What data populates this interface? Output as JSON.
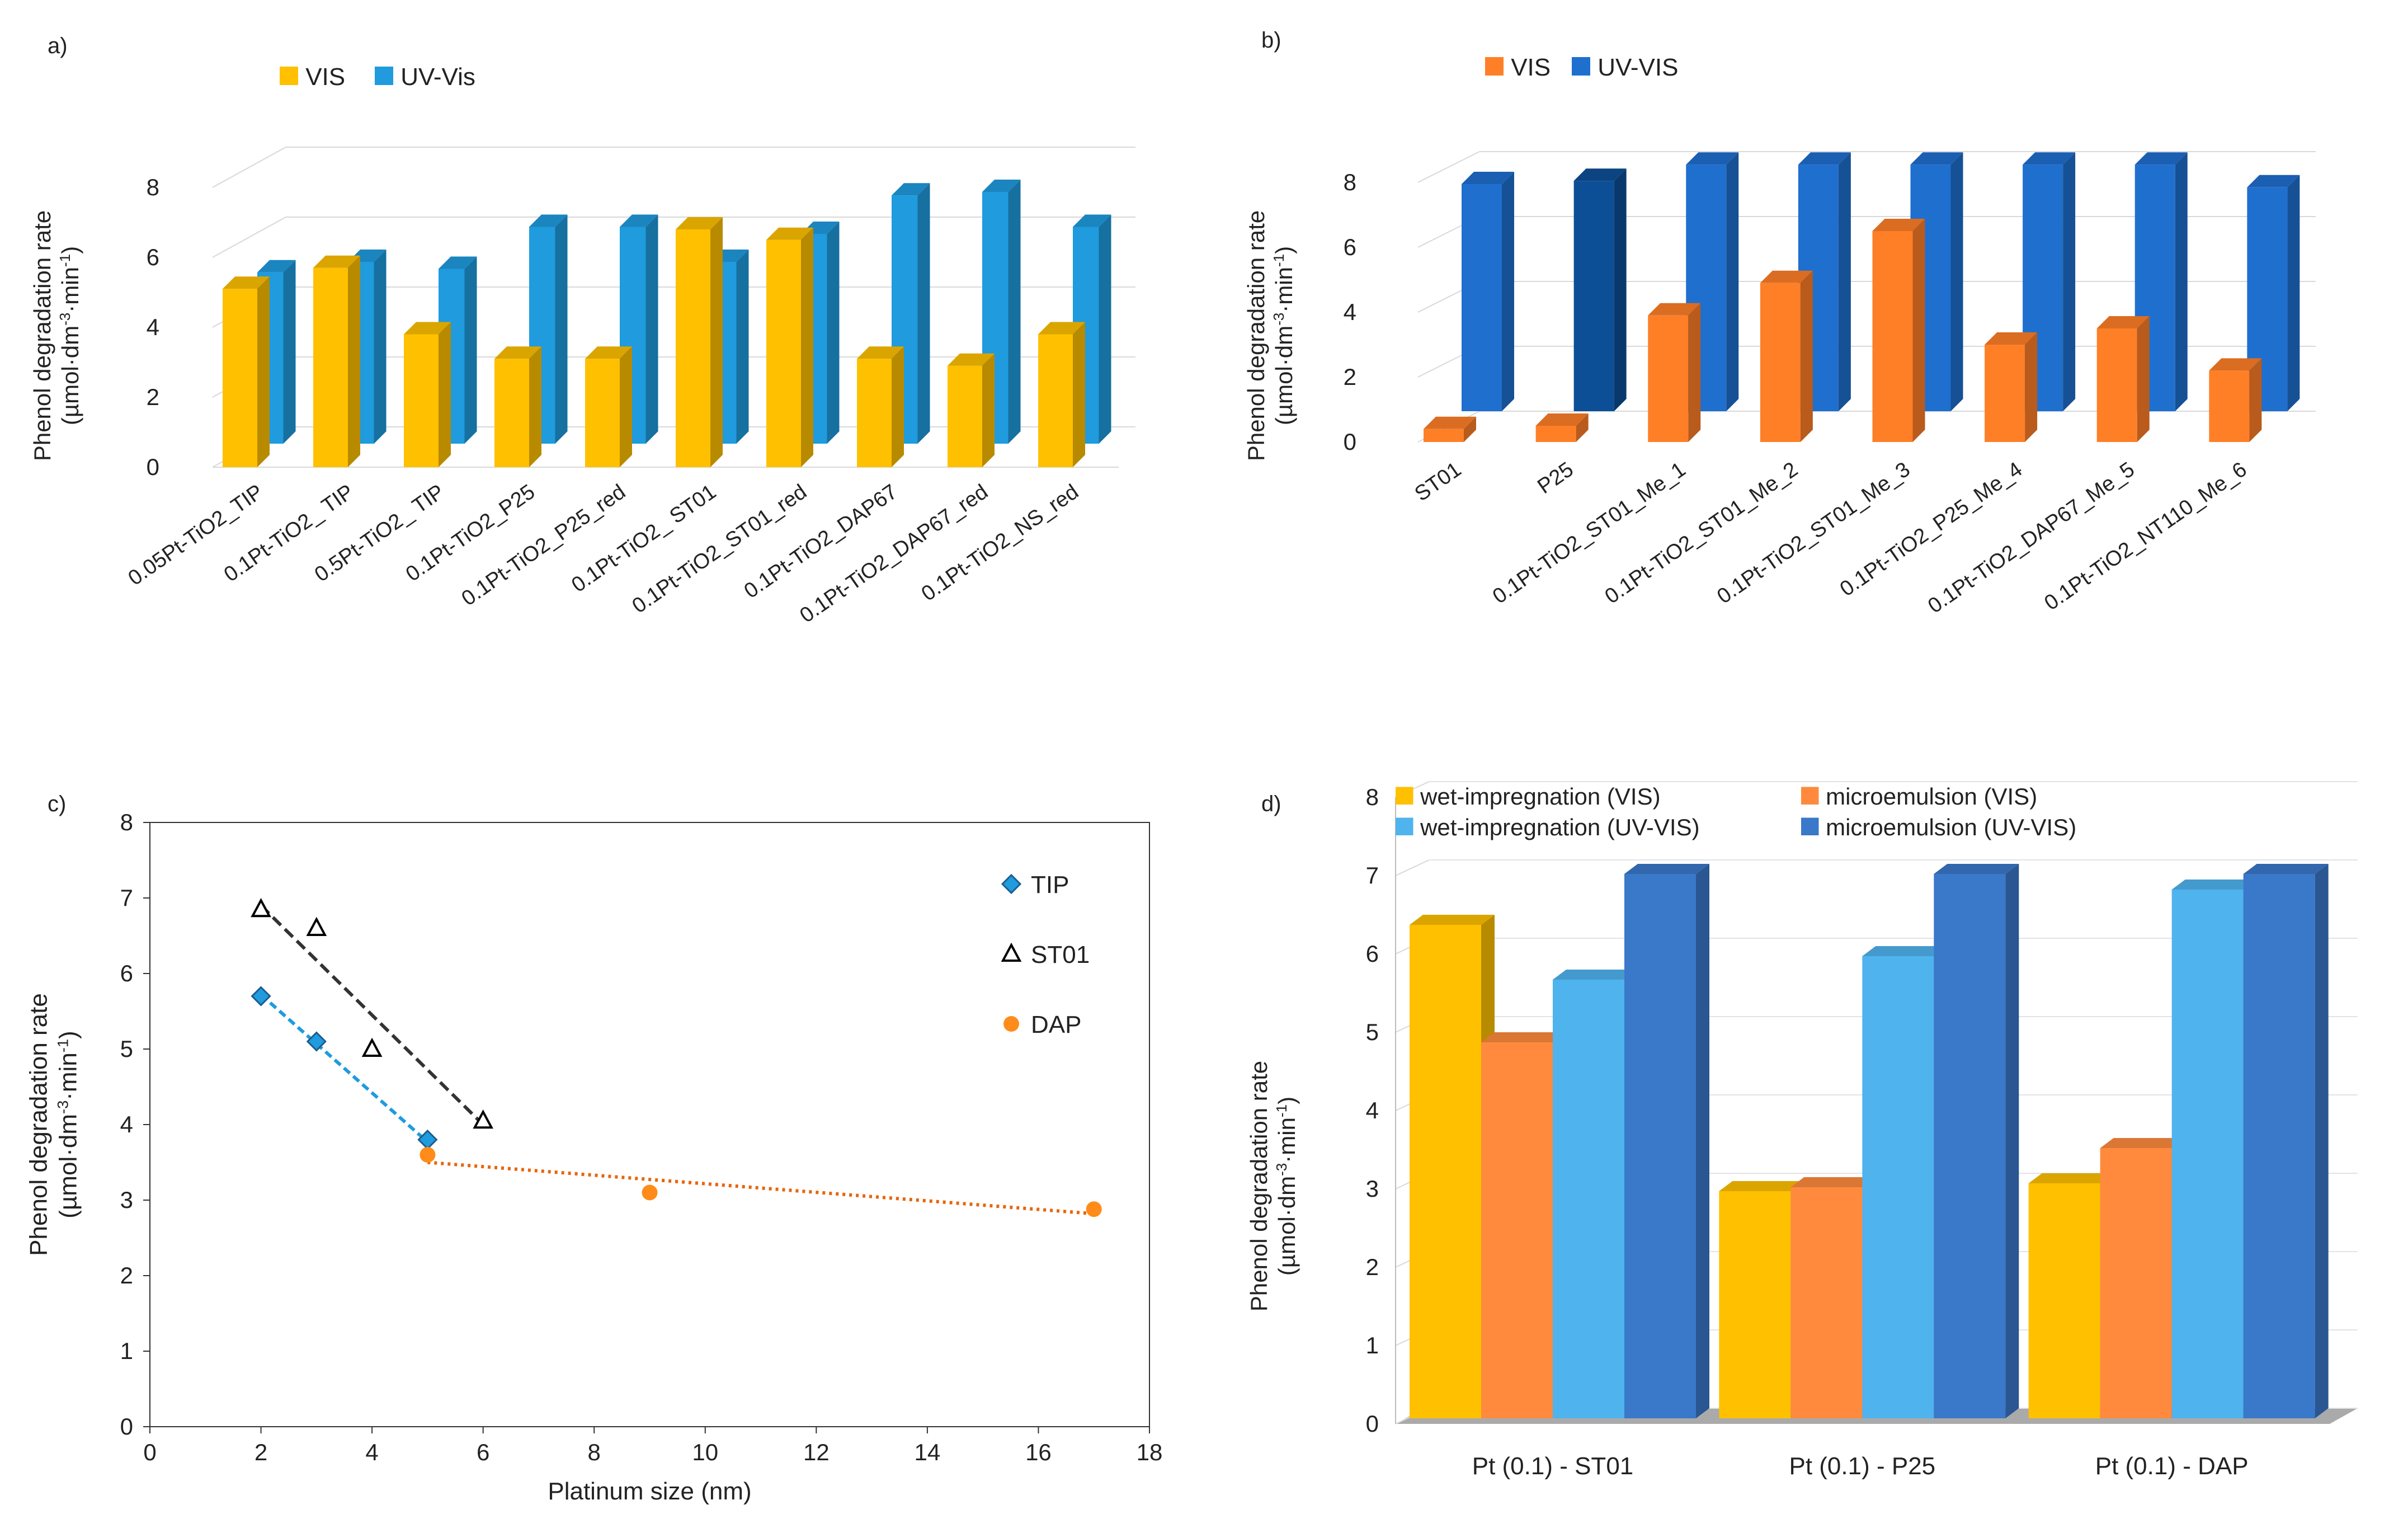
{
  "chart_data": [
    {
      "panel": "a)",
      "type": "bar",
      "ylabel": "Phenol degradation rate",
      "ylabel_units": "(µmol·dm-3·min-1)",
      "ylim": [
        0,
        8
      ],
      "yticks": [
        0,
        2,
        4,
        6,
        8
      ],
      "grid": true,
      "legend": "top-left",
      "categories": [
        "0.05Pt-TiO2_TIP",
        "0.1Pt-TiO2_ TIP",
        "0.5Pt-TiO2_ TIP",
        "0.1Pt-TiO2_P25",
        "0.1Pt-TiO2_P25_red",
        "0.1Pt-TiO2_ ST01",
        "0.1Pt-TiO2_ST01_red",
        "0.1Pt-TiO2_DAP67",
        "0.1Pt-TiO2_DAP67_red",
        "0.1Pt-TiO2_NS_red"
      ],
      "series": [
        {
          "name": "VIS",
          "color": "#FFC000",
          "values": [
            5.1,
            5.7,
            3.8,
            3.1,
            3.1,
            6.8,
            6.5,
            3.1,
            2.9,
            3.8
          ]
        },
        {
          "name": "UV-Vis",
          "color": "#1F9BDE",
          "values": [
            4.9,
            5.2,
            5.0,
            6.2,
            6.2,
            5.2,
            6.0,
            7.1,
            7.2,
            6.2
          ]
        }
      ]
    },
    {
      "panel": "b)",
      "type": "bar",
      "ylabel": "Phenol degradation rate",
      "ylabel_units": "(µmol·dm-3·min-1)",
      "ylim": [
        0,
        8
      ],
      "yticks": [
        0,
        2,
        4,
        6,
        8
      ],
      "grid": true,
      "legend": "top-left",
      "categories": [
        "ST01",
        "P25",
        "0.1Pt-TiO2_ST01_Me_1",
        "0.1Pt-TiO2_ST01_Me_2",
        "0.1Pt-TiO2_ST01_Me_3",
        "0.1Pt-TiO2_P25_Me_4",
        "0.1Pt-TiO2_DAP67_Me_5",
        "0.1Pt-TiO2_NT110_Me_6"
      ],
      "series": [
        {
          "name": "VIS",
          "color": "#FF7F27",
          "values": [
            0.4,
            0.5,
            3.9,
            4.9,
            6.5,
            3.0,
            3.5,
            2.2
          ]
        },
        {
          "name": "UV-VIS",
          "color": "#1F6FCF",
          "values": [
            7.0,
            7.1,
            7.6,
            7.6,
            7.6,
            7.6,
            7.6,
            6.9
          ]
        }
      ]
    },
    {
      "panel": "c)",
      "type": "scatter",
      "xlabel": "Platinum size (nm)",
      "ylabel": "Phenol degradation rate",
      "ylabel_units": "(µmol·dm-3·min-1)",
      "xlim": [
        0,
        18
      ],
      "ylim": [
        0,
        8
      ],
      "xticks": [
        0,
        2,
        4,
        6,
        8,
        10,
        12,
        14,
        16,
        18
      ],
      "yticks": [
        0,
        1,
        2,
        3,
        4,
        5,
        6,
        7,
        8
      ],
      "grid": false,
      "legend": "right",
      "series": [
        {
          "name": "TIP",
          "marker": "diamond",
          "color": "#1F9BDE",
          "x": [
            2,
            3,
            5
          ],
          "y": [
            5.7,
            5.1,
            3.8
          ],
          "trend": [
            [
              2,
              5.72
            ],
            [
              5,
              3.77
            ]
          ]
        },
        {
          "name": "ST01",
          "marker": "triangle",
          "color": "#000000",
          "x": [
            2,
            3,
            4,
            6
          ],
          "y": [
            6.85,
            6.6,
            5.0,
            4.05
          ],
          "trend": [
            [
              2,
              6.9
            ],
            [
              6,
              4.0
            ]
          ]
        },
        {
          "name": "DAP",
          "marker": "circle",
          "color": "#FF8C1A",
          "x": [
            5,
            9,
            17
          ],
          "y": [
            3.6,
            3.1,
            2.88
          ],
          "trend": [
            [
              5,
              3.5
            ],
            [
              17,
              2.82
            ]
          ]
        }
      ]
    },
    {
      "panel": "d)",
      "type": "bar",
      "ylabel": "Phenol degradation rate",
      "ylabel_units": "(µmol·dm-3·min-1)",
      "ylim": [
        0,
        8
      ],
      "yticks": [
        0,
        1,
        2,
        3,
        4,
        5,
        6,
        7,
        8
      ],
      "grid": true,
      "legend": "top",
      "categories": [
        "Pt (0.1) - ST01",
        "Pt (0.1) - P25",
        "Pt (0.1) - DAP"
      ],
      "series": [
        {
          "name": "wet-impregnation (VIS)",
          "color": "#FFC000",
          "values": [
            6.3,
            2.9,
            3.0
          ]
        },
        {
          "name": "microemulsion (VIS)",
          "color": "#FF8A3D",
          "values": [
            4.8,
            2.95,
            3.45
          ]
        },
        {
          "name": "wet-impregnation (UV-VIS)",
          "color": "#4FB3EE",
          "values": [
            5.6,
            5.9,
            6.75
          ]
        },
        {
          "name": "microemulsion (UV-VIS)",
          "color": "#3A78C9",
          "values": [
            6.95,
            6.95,
            6.95
          ]
        }
      ]
    }
  ]
}
